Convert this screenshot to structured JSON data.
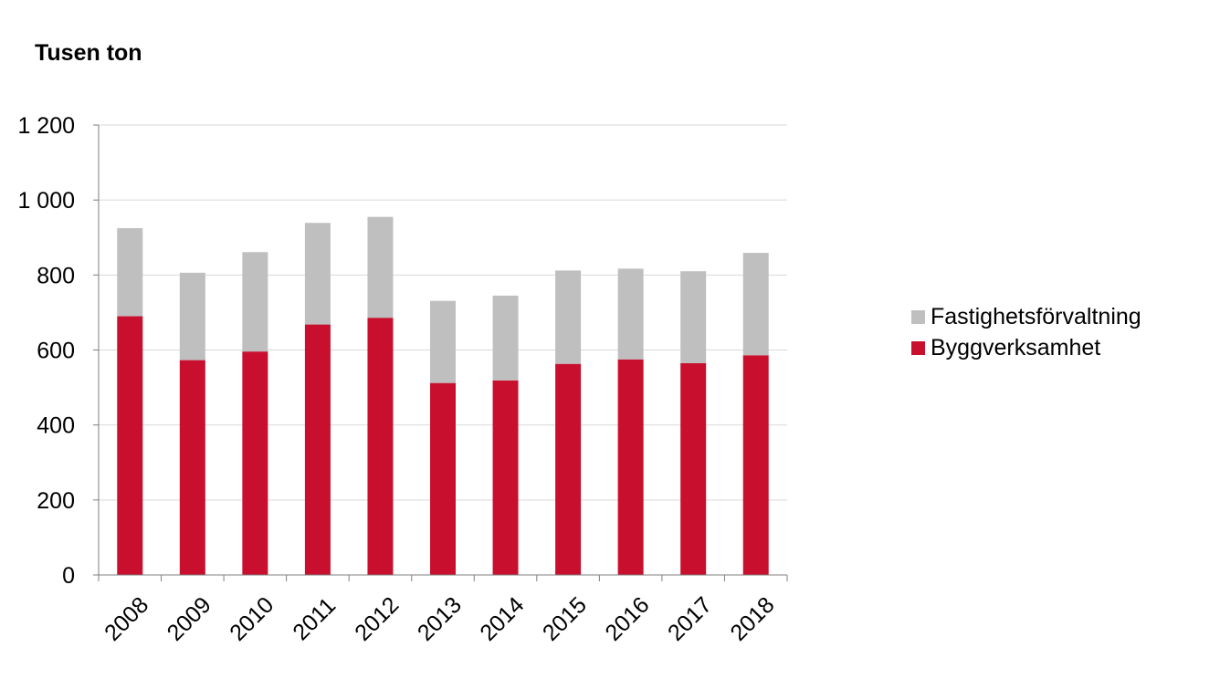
{
  "chart_data": {
    "type": "bar",
    "stacked": true,
    "title": "Tusen ton",
    "xlabel": "",
    "ylabel": "",
    "categories": [
      "2008",
      "2009",
      "2010",
      "2011",
      "2012",
      "2013",
      "2014",
      "2015",
      "2016",
      "2017",
      "2018"
    ],
    "series": [
      {
        "name": "Byggverksamhet",
        "color": "#c8102e",
        "values": [
          690,
          573,
          596,
          668,
          686,
          512,
          519,
          563,
          575,
          565,
          586
        ]
      },
      {
        "name": "Fastighetsförvaltning",
        "color": "#bfbfbf",
        "values": [
          235,
          233,
          265,
          271,
          269,
          219,
          226,
          249,
          242,
          245,
          273
        ]
      }
    ],
    "ylim": [
      0,
      1200
    ],
    "yticks": [
      0,
      200,
      400,
      600,
      800,
      1000,
      1200
    ],
    "ytick_labels": [
      "0",
      "200",
      "400",
      "600",
      "800",
      "1 000",
      "1 200"
    ],
    "grid": true,
    "legend_position": "right",
    "legend_order": [
      "Fastighetsförvaltning",
      "Byggverksamhet"
    ]
  }
}
